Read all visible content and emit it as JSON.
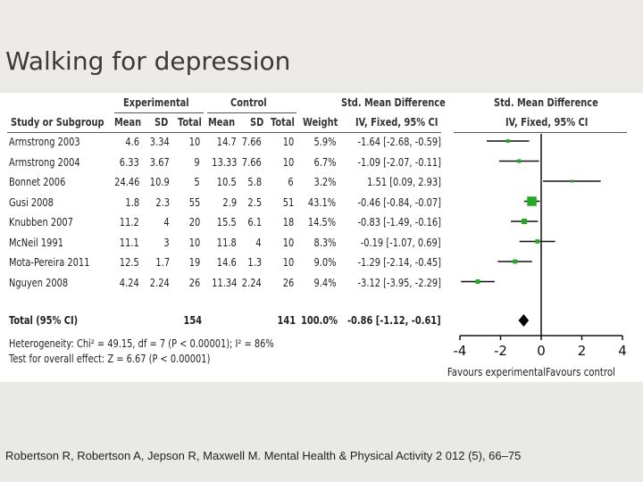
{
  "slide": {
    "title": "Walking for depression",
    "citation": "Robertson R, Robertson A, Jepson R, Maxwell M. Mental Health & Physical Activity 2 012 (5), 66–75"
  },
  "table": {
    "group_headers": {
      "experimental": "Experimental",
      "control": "Control",
      "smd": "Std. Mean Difference",
      "smd_plot": "Std. Mean Difference"
    },
    "column_headers": {
      "study": "Study or Subgroup",
      "exp_mean": "Mean",
      "exp_sd": "SD",
      "exp_total": "Total",
      "ctrl_mean": "Mean",
      "ctrl_sd": "SD",
      "ctrl_total": "Total",
      "weight": "Weight",
      "ci": "IV, Fixed, 95% CI",
      "ci_plot": "IV, Fixed, 95% CI"
    },
    "total": {
      "label": "Total (95% CI)",
      "exp_total": "154",
      "ctrl_total": "141",
      "weight": "100.0%",
      "ci": "-0.86 [-1.12, -0.61]"
    },
    "heterogeneity": "Heterogeneity: Chi² = 49.15, df = 7 (P < 0.00001); I² = 86%",
    "overall_effect": "Test for overall effect: Z = 6.67 (P < 0.00001)",
    "axis_labels": {
      "left": "Favours experimental",
      "right": "Favours control"
    }
  },
  "chart_data": {
    "type": "forest",
    "studies": [
      {
        "name": "Armstrong 2003",
        "exp_mean": "4.6",
        "exp_sd": "3.34",
        "exp_total": "10",
        "ctrl_mean": "14.7",
        "ctrl_sd": "7.66",
        "ctrl_total": "10",
        "weight_text": "5.9%",
        "ci_text": "-1.64 [-2.68, -0.59]",
        "est": -1.64,
        "lo": -2.68,
        "hi": -0.59,
        "weight": 5.9
      },
      {
        "name": "Armstrong 2004",
        "exp_mean": "6.33",
        "exp_sd": "3.67",
        "exp_total": "9",
        "ctrl_mean": "13.33",
        "ctrl_sd": "7.66",
        "ctrl_total": "10",
        "weight_text": "6.7%",
        "ci_text": "-1.09 [-2.07, -0.11]",
        "est": -1.09,
        "lo": -2.07,
        "hi": -0.11,
        "weight": 6.7
      },
      {
        "name": "Bonnet 2006",
        "exp_mean": "24.46",
        "exp_sd": "10.9",
        "exp_total": "5",
        "ctrl_mean": "10.5",
        "ctrl_sd": "5.8",
        "ctrl_total": "6",
        "weight_text": "3.2%",
        "ci_text": "1.51 [0.09, 2.93]",
        "est": 1.51,
        "lo": 0.09,
        "hi": 2.93,
        "weight": 3.2
      },
      {
        "name": "Gusi 2008",
        "exp_mean": "1.8",
        "exp_sd": "2.3",
        "exp_total": "55",
        "ctrl_mean": "2.9",
        "ctrl_sd": "2.5",
        "ctrl_total": "51",
        "weight_text": "43.1%",
        "ci_text": "-0.46 [-0.84, -0.07]",
        "est": -0.46,
        "lo": -0.84,
        "hi": -0.07,
        "weight": 43.1
      },
      {
        "name": "Knubben 2007",
        "exp_mean": "11.2",
        "exp_sd": "4",
        "exp_total": "20",
        "ctrl_mean": "15.5",
        "ctrl_sd": "6.1",
        "ctrl_total": "18",
        "weight_text": "14.5%",
        "ci_text": "-0.83 [-1.49, -0.16]",
        "est": -0.83,
        "lo": -1.49,
        "hi": -0.16,
        "weight": 14.5
      },
      {
        "name": "McNeil 1991",
        "exp_mean": "11.1",
        "exp_sd": "3",
        "exp_total": "10",
        "ctrl_mean": "11.8",
        "ctrl_sd": "4",
        "ctrl_total": "10",
        "weight_text": "8.3%",
        "ci_text": "-0.19 [-1.07, 0.69]",
        "est": -0.19,
        "lo": -1.07,
        "hi": 0.69,
        "weight": 8.3
      },
      {
        "name": "Mota-Pereira 2011",
        "exp_mean": "12.5",
        "exp_sd": "1.7",
        "exp_total": "19",
        "ctrl_mean": "14.6",
        "ctrl_sd": "1.3",
        "ctrl_total": "10",
        "weight_text": "9.0%",
        "ci_text": "-1.29 [-2.14, -0.45]",
        "est": -1.29,
        "lo": -2.14,
        "hi": -0.45,
        "weight": 9.0
      },
      {
        "name": "Nguyen 2008",
        "exp_mean": "4.24",
        "exp_sd": "2.24",
        "exp_total": "26",
        "ctrl_mean": "11.34",
        "ctrl_sd": "2.24",
        "ctrl_total": "26",
        "weight_text": "9.4%",
        "ci_text": "-3.12 [-3.95, -2.29]",
        "est": -3.12,
        "lo": -3.95,
        "hi": -2.29,
        "weight": 9.4
      }
    ],
    "pooled": {
      "est": -0.86,
      "lo": -1.12,
      "hi": -0.61
    },
    "x_ticks": [
      -4,
      -2,
      0,
      2,
      4
    ],
    "xlim": [
      -4,
      4
    ],
    "marker_color": "#22aa22",
    "line_color": "#111111"
  }
}
